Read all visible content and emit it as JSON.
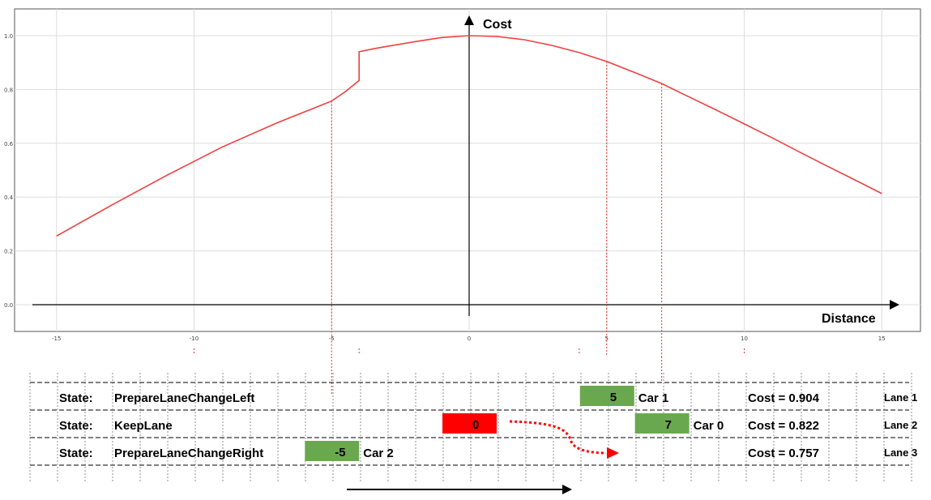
{
  "chart_data": {
    "type": "line",
    "x_axis_label": "Distance",
    "y_axis_label": "Cost",
    "xlim": [
      -16,
      16
    ],
    "ylim": [
      -0.1,
      1.1
    ],
    "x_ticks": [
      -15,
      -10,
      -5,
      0,
      5,
      10,
      15
    ],
    "x_tick_labels": [
      "-15",
      "-10",
      "-5",
      "0",
      "5",
      "10",
      "15"
    ],
    "y_ticks": [
      0.0,
      0.2,
      0.4,
      0.6,
      0.8,
      1.0
    ],
    "y_tick_labels": [
      "0.0",
      "0.2",
      "0.4",
      "0.6",
      "0.8",
      "1.0"
    ],
    "grid": true,
    "series": [
      {
        "color": "#f04040",
        "x": [
          -15,
          -13,
          -11,
          -9,
          -7,
          -6,
          -5,
          -4.5,
          -4,
          -4,
          -3.5,
          -3,
          -2,
          -1,
          0,
          1,
          2,
          3,
          4,
          5,
          6,
          7,
          8,
          9,
          10,
          11,
          12,
          13,
          14,
          15
        ],
        "y": [
          0.255,
          0.37,
          0.48,
          0.585,
          0.675,
          0.716,
          0.757,
          0.792,
          0.833,
          0.94,
          0.951,
          0.96,
          0.977,
          0.993,
          1.0,
          0.997,
          0.985,
          0.964,
          0.937,
          0.904,
          0.864,
          0.822,
          0.772,
          0.723,
          0.672,
          0.621,
          0.568,
          0.516,
          0.465,
          0.413
        ]
      }
    ],
    "markers": [
      {
        "x": -5,
        "y": 0.757
      },
      {
        "x": 5,
        "y": 0.904
      },
      {
        "x": 7,
        "y": 0.822
      }
    ]
  },
  "lanes": [
    {
      "state_label": "State:",
      "state": "PrepareLaneChangeLeft",
      "cost": "Cost = 0.904",
      "lane": "Lane 1"
    },
    {
      "state_label": "State:",
      "state": "KeepLane",
      "cost": "Cost = 0.822",
      "lane": "Lane 2"
    },
    {
      "state_label": "State:",
      "state": "PrepareLaneChangeRight",
      "cost": "Cost = 0.757",
      "lane": "Lane 3"
    }
  ],
  "cars": [
    {
      "value": "5",
      "name": "Car 1",
      "lane": 0,
      "x": 5,
      "color": "#6aa84f"
    },
    {
      "value": "0",
      "name": "",
      "lane": 1,
      "x": 0,
      "color": "#ff0000"
    },
    {
      "value": "7",
      "name": "Car 0",
      "lane": 1,
      "x": 7,
      "color": "#6aa84f"
    },
    {
      "value": "-5",
      "name": "Car 2",
      "lane": 2,
      "x": -5,
      "color": "#6aa84f"
    }
  ]
}
